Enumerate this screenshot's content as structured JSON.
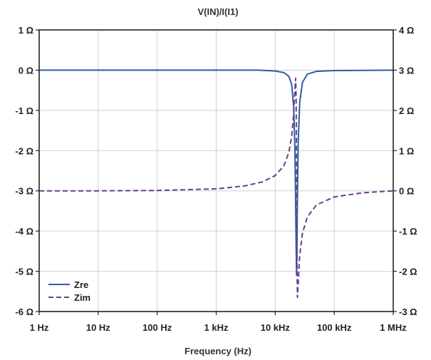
{
  "chart_data": {
    "type": "line",
    "title": "V(IN)/I(I1)",
    "xlabel": "Frequency (Hz)",
    "ylabel": "",
    "y2label": "",
    "xscale": "log",
    "xlim": [
      1,
      1000000
    ],
    "ylim_left": [
      -6,
      1
    ],
    "ylim_right": [
      -3,
      4
    ],
    "x_ticks": [
      {
        "value": 1,
        "label": "1 Hz"
      },
      {
        "value": 10,
        "label": "10 Hz"
      },
      {
        "value": 100,
        "label": "100 Hz"
      },
      {
        "value": 1000,
        "label": "1 kHz"
      },
      {
        "value": 10000,
        "label": "10 kHz"
      },
      {
        "value": 100000,
        "label": "100 kHz"
      },
      {
        "value": 1000000,
        "label": "1 MHz"
      }
    ],
    "y_left_ticks": [
      {
        "value": 1,
        "label": "1 Ω"
      },
      {
        "value": 0,
        "label": "0 Ω"
      },
      {
        "value": -1,
        "label": "-1 Ω"
      },
      {
        "value": -2,
        "label": "-2 Ω"
      },
      {
        "value": -3,
        "label": "-3 Ω"
      },
      {
        "value": -4,
        "label": "-4 Ω"
      },
      {
        "value": -5,
        "label": "-5 Ω"
      },
      {
        "value": -6,
        "label": "-6 Ω"
      }
    ],
    "y_right_ticks": [
      {
        "value": 4,
        "label": "4 Ω"
      },
      {
        "value": 3,
        "label": "3 Ω"
      },
      {
        "value": 2,
        "label": "2 Ω"
      },
      {
        "value": 1,
        "label": "1 Ω"
      },
      {
        "value": 0,
        "label": "0 Ω"
      },
      {
        "value": -1,
        "label": "-1 Ω"
      },
      {
        "value": -2,
        "label": "-2 Ω"
      },
      {
        "value": -3,
        "label": "-3 Ω"
      }
    ],
    "grid": true,
    "legend_position": "bottom-left",
    "series": [
      {
        "name": "Zre",
        "axis": "left",
        "color": "#2b5f9e",
        "dash": "solid",
        "x": [
          1,
          10,
          100,
          1000,
          5000,
          10000,
          14000,
          17000,
          19000,
          20500,
          21500,
          22200,
          22600,
          23000,
          23400,
          23800,
          24500,
          26000,
          29000,
          35000,
          50000,
          100000,
          1000000
        ],
        "y": [
          0,
          0,
          0,
          0,
          0,
          -0.02,
          -0.06,
          -0.15,
          -0.35,
          -0.9,
          -1.9,
          -3.3,
          -4.4,
          -5.1,
          -4.4,
          -3.2,
          -1.8,
          -0.8,
          -0.3,
          -0.1,
          -0.03,
          -0.01,
          0
        ]
      },
      {
        "name": "Zim",
        "axis": "right",
        "color": "#6a3d8f",
        "dash": "dashed",
        "x": [
          1,
          10,
          100,
          1000,
          3000,
          6000,
          10000,
          14000,
          17000,
          19000,
          20500,
          21500,
          22200,
          22600,
          23000,
          23400,
          23800,
          24500,
          26000,
          29000,
          35000,
          50000,
          100000,
          300000,
          1000000
        ],
        "y": [
          0,
          0,
          0.01,
          0.05,
          0.12,
          0.22,
          0.38,
          0.62,
          0.95,
          1.35,
          1.9,
          2.5,
          2.8,
          2.3,
          0.5,
          -1.8,
          -2.65,
          -2.3,
          -1.6,
          -1.05,
          -0.65,
          -0.35,
          -0.15,
          -0.05,
          0
        ]
      }
    ]
  }
}
